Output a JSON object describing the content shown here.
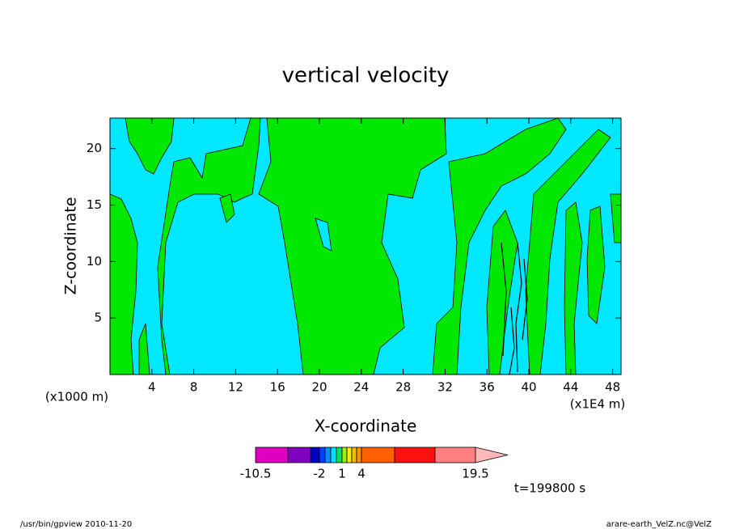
{
  "chart_data": {
    "type": "contour",
    "title": "vertical velocity",
    "x_label": "X-coordinate",
    "y_label": "Z-coordinate",
    "x_unit": "(x1000 m)",
    "x_unit_right": "(x1E4 m)",
    "time_label": "t=199800 s",
    "footer_left": "/usr/bin/gpview  2010-11-20",
    "footer_right": "arare-earth_VelZ.nc@VelZ",
    "xlim": [
      0,
      48.8
    ],
    "ylim": [
      0,
      22.7
    ],
    "xticks": [
      4,
      8,
      12,
      16,
      20,
      24,
      28,
      32,
      36,
      40,
      44,
      48
    ],
    "yticks": [
      5,
      10,
      15,
      20
    ],
    "colorbar_colors": [
      "#e000c0",
      "#8000c0",
      "#0000c0",
      "#0040ff",
      "#0090ff",
      "#00e0ff",
      "#00e060",
      "#a0f000",
      "#f0f000",
      "#f0c000",
      "#ff9000",
      "#ff6000",
      "#ff1010",
      "#ff8080",
      "#ffb8b8"
    ],
    "colorbar_labels": [
      -10.5,
      -2,
      1,
      4,
      19.5
    ]
  }
}
